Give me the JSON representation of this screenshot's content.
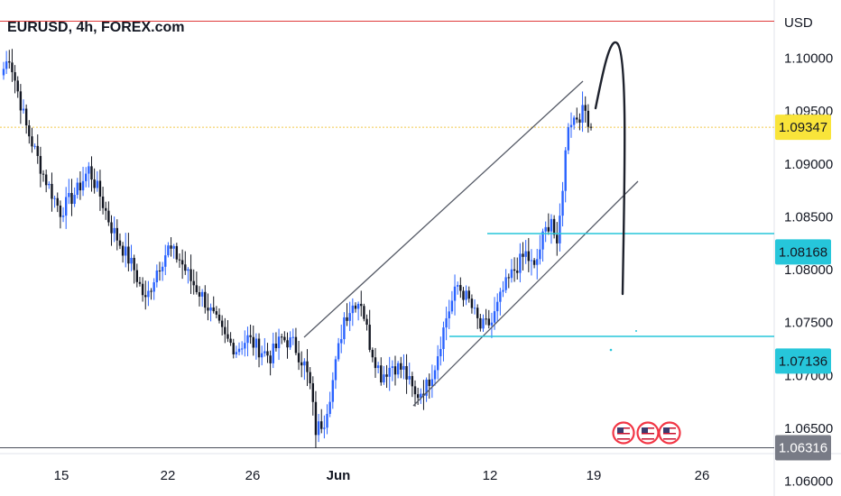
{
  "header": {
    "symbol_title": "EURUSD, 4h, FOREX.com",
    "currency": "USD"
  },
  "chart_data": {
    "type": "candlestick",
    "title": "EURUSD, 4h, FOREX.com",
    "y_unit": "USD",
    "ylim": [
      1.0586,
      1.1055
    ],
    "y_ticks": [
      "1.10000",
      "1.09500",
      "1.09000",
      "1.08500",
      "1.08000",
      "1.07500",
      "1.07000",
      "1.06500",
      "1.06000"
    ],
    "x_ticks": [
      "15",
      "22",
      "26",
      "Jun",
      "12",
      "19",
      "26"
    ],
    "price_labels": [
      {
        "name": "current-price",
        "value": "1.09347",
        "color": "#f9e43a",
        "text_color": "#131722"
      },
      {
        "name": "level-1",
        "value": "1.08168",
        "color": "#26c6da",
        "text_color": "#131722"
      },
      {
        "name": "level-2",
        "value": "1.07136",
        "color": "#26c6da",
        "text_color": "#131722"
      },
      {
        "name": "support-level",
        "value": "1.06316",
        "color": "#787b86",
        "text_color": "#ffffff"
      }
    ],
    "horizontal_lines": [
      {
        "name": "top-red-line",
        "value": 1.1035,
        "color": "#e03a3a"
      },
      {
        "name": "support-line",
        "value": 1.06316,
        "color": "#4a4e5a"
      },
      {
        "name": "current-price-line",
        "value": 1.09347,
        "color": "#f2c94c",
        "style": "dotted"
      }
    ],
    "candle_colors": {
      "up": "#2962ff",
      "down": "#131722"
    },
    "anchors": [
      {
        "i": 0,
        "v": 1.099
      },
      {
        "i": 2,
        "v": 1.1002
      },
      {
        "i": 8,
        "v": 1.0935
      },
      {
        "i": 14,
        "v": 1.089
      },
      {
        "i": 20,
        "v": 1.0855
      },
      {
        "i": 26,
        "v": 1.0875
      },
      {
        "i": 30,
        "v": 1.0895
      },
      {
        "i": 34,
        "v": 1.087
      },
      {
        "i": 38,
        "v": 1.084
      },
      {
        "i": 42,
        "v": 1.082
      },
      {
        "i": 46,
        "v": 1.08
      },
      {
        "i": 50,
        "v": 1.077
      },
      {
        "i": 54,
        "v": 1.08
      },
      {
        "i": 58,
        "v": 1.082
      },
      {
        "i": 62,
        "v": 1.081
      },
      {
        "i": 66,
        "v": 1.079
      },
      {
        "i": 70,
        "v": 1.0775
      },
      {
        "i": 74,
        "v": 1.0755
      },
      {
        "i": 78,
        "v": 1.0735
      },
      {
        "i": 82,
        "v": 1.0725
      },
      {
        "i": 86,
        "v": 1.0735
      },
      {
        "i": 90,
        "v": 1.0725
      },
      {
        "i": 94,
        "v": 1.0718
      },
      {
        "i": 98,
        "v": 1.0735
      },
      {
        "i": 102,
        "v": 1.073
      },
      {
        "i": 106,
        "v": 1.071
      },
      {
        "i": 108,
        "v": 1.069
      },
      {
        "i": 110,
        "v": 1.0648
      },
      {
        "i": 113,
        "v": 1.0658
      },
      {
        "i": 116,
        "v": 1.0695
      },
      {
        "i": 120,
        "v": 1.0755
      },
      {
        "i": 124,
        "v": 1.077
      },
      {
        "i": 126,
        "v": 1.077
      },
      {
        "i": 129,
        "v": 1.073
      },
      {
        "i": 133,
        "v": 1.07
      },
      {
        "i": 137,
        "v": 1.071
      },
      {
        "i": 141,
        "v": 1.0705
      },
      {
        "i": 145,
        "v": 1.068
      },
      {
        "i": 149,
        "v": 1.069
      },
      {
        "i": 152,
        "v": 1.071
      },
      {
        "i": 156,
        "v": 1.0755
      },
      {
        "i": 160,
        "v": 1.0785
      },
      {
        "i": 164,
        "v": 1.077
      },
      {
        "i": 168,
        "v": 1.0745
      },
      {
        "i": 172,
        "v": 1.075
      },
      {
        "i": 176,
        "v": 1.078
      },
      {
        "i": 180,
        "v": 1.08
      },
      {
        "i": 184,
        "v": 1.0815
      },
      {
        "i": 187,
        "v": 1.08
      },
      {
        "i": 190,
        "v": 1.083
      },
      {
        "i": 193,
        "v": 1.085
      },
      {
        "i": 195,
        "v": 1.0817
      },
      {
        "i": 197,
        "v": 1.088
      },
      {
        "i": 199,
        "v": 1.094
      },
      {
        "i": 202,
        "v": 1.0945
      },
      {
        "i": 205,
        "v": 1.095
      },
      {
        "i": 207,
        "v": 1.0935
      }
    ]
  },
  "events": [
    {
      "name": "us-flag-event-icon-1",
      "country": "US"
    },
    {
      "name": "us-flag-event-icon-2",
      "country": "US"
    },
    {
      "name": "us-flag-event-icon-3",
      "country": "US"
    }
  ]
}
